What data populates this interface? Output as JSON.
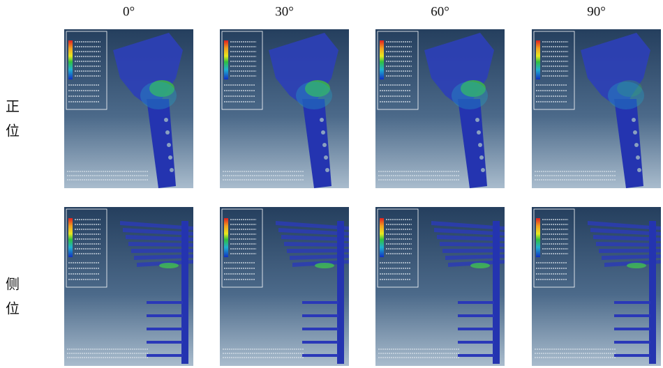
{
  "columns": [
    "0°",
    "30°",
    "60°",
    "90°"
  ],
  "rows": [
    {
      "label": [
        "正",
        "位"
      ]
    },
    {
      "label": [
        "侧",
        "位"
      ]
    }
  ]
}
